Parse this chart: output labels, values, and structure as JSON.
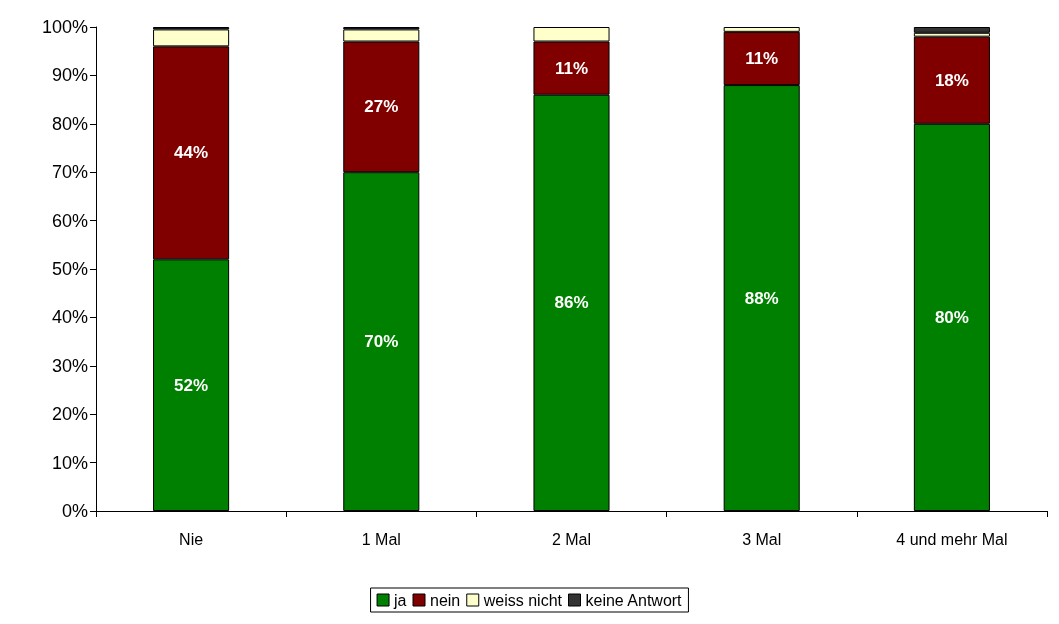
{
  "chart_data": {
    "type": "bar",
    "stacked": true,
    "categories": [
      "Nie",
      "1 Mal",
      "2 Mal",
      "3 Mal",
      "4 und mehr Mal"
    ],
    "series": [
      {
        "name": "ja",
        "color": "#008000",
        "values": [
          52,
          70,
          86,
          88,
          80
        ],
        "value_labels": [
          "52%",
          "70%",
          "86%",
          "88%",
          "80%"
        ]
      },
      {
        "name": "nein",
        "color": "#800000",
        "values": [
          44,
          27,
          11,
          11,
          18
        ],
        "value_labels": [
          "44%",
          "27%",
          "11%",
          "11%",
          "18%"
        ]
      },
      {
        "name": "weiss nicht",
        "color": "#ffffcc",
        "values": [
          3.5,
          2.5,
          3,
          1,
          0.8
        ]
      },
      {
        "name": "keine Antwort",
        "color": "#333333",
        "values": [
          0.5,
          0.5,
          0,
          0,
          1.2
        ]
      }
    ],
    "ylim": [
      0,
      100
    ],
    "yticks": [
      {
        "value": 0,
        "label": "0%"
      },
      {
        "value": 10,
        "label": "10%"
      },
      {
        "value": 20,
        "label": "20%"
      },
      {
        "value": 30,
        "label": "30%"
      },
      {
        "value": 40,
        "label": "40%"
      },
      {
        "value": 50,
        "label": "50%"
      },
      {
        "value": 60,
        "label": "60%"
      },
      {
        "value": 70,
        "label": "70%"
      },
      {
        "value": 80,
        "label": "80%"
      },
      {
        "value": 90,
        "label": "90%"
      },
      {
        "value": 100,
        "label": "100%"
      }
    ],
    "grid": false,
    "legend": "bottom"
  }
}
